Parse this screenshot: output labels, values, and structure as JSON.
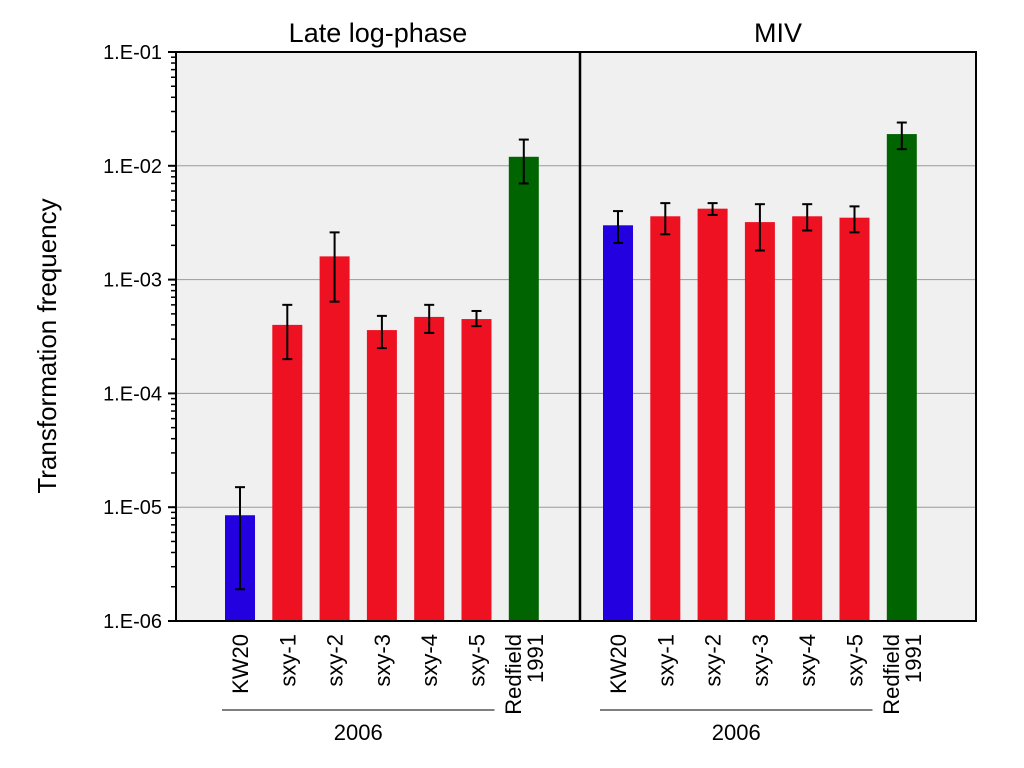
{
  "chart_data": {
    "type": "bar",
    "ylabel": "Transformation frequency",
    "yscale": "log",
    "ylim": [
      1e-06,
      0.1
    ],
    "ytick_labels": [
      "1.E-06",
      "1.E-05",
      "1.E-04",
      "1.E-03",
      "1.E-02",
      "1.E-01"
    ],
    "grid": "horizontal",
    "colors": {
      "KW20": "#2200e0",
      "sxy": "#ee1122",
      "Redfield": "#006400",
      "panel_bg": "#f0f0f0"
    },
    "panels": [
      {
        "title": "Late log-phase",
        "group_label": "2006",
        "bars": [
          {
            "label": "KW20",
            "value": 8.5e-06,
            "err_low": 1.9e-06,
            "err_high": 1.5e-05,
            "color_key": "KW20"
          },
          {
            "label": "sxy-1",
            "value": 0.0004,
            "err_low": 0.0002,
            "err_high": 0.0006,
            "color_key": "sxy"
          },
          {
            "label": "sxy-2",
            "value": 0.0016,
            "err_low": 0.00064,
            "err_high": 0.0026,
            "color_key": "sxy"
          },
          {
            "label": "sxy-3",
            "value": 0.00036,
            "err_low": 0.00025,
            "err_high": 0.00048,
            "color_key": "sxy"
          },
          {
            "label": "sxy-4",
            "value": 0.00047,
            "err_low": 0.00034,
            "err_high": 0.0006,
            "color_key": "sxy"
          },
          {
            "label": "sxy-5",
            "value": 0.00045,
            "err_low": 0.00039,
            "err_high": 0.00053,
            "color_key": "sxy"
          },
          {
            "label": "Redfield\n1991",
            "value": 0.012,
            "err_low": 0.007,
            "err_high": 0.017,
            "color_key": "Redfield"
          }
        ]
      },
      {
        "title": "MIV",
        "group_label": "2006",
        "bars": [
          {
            "label": "KW20",
            "value": 0.003,
            "err_low": 0.0021,
            "err_high": 0.004,
            "color_key": "KW20"
          },
          {
            "label": "sxy-1",
            "value": 0.0036,
            "err_low": 0.0025,
            "err_high": 0.0047,
            "color_key": "sxy"
          },
          {
            "label": "sxy-2",
            "value": 0.0042,
            "err_low": 0.0037,
            "err_high": 0.0047,
            "color_key": "sxy"
          },
          {
            "label": "sxy-3",
            "value": 0.0032,
            "err_low": 0.0018,
            "err_high": 0.0046,
            "color_key": "sxy"
          },
          {
            "label": "sxy-4",
            "value": 0.0036,
            "err_low": 0.0027,
            "err_high": 0.0046,
            "color_key": "sxy"
          },
          {
            "label": "sxy-5",
            "value": 0.0035,
            "err_low": 0.0026,
            "err_high": 0.0044,
            "color_key": "sxy"
          },
          {
            "label": "Redfield\n1991",
            "value": 0.019,
            "err_low": 0.014,
            "err_high": 0.024,
            "color_key": "Redfield"
          }
        ]
      }
    ]
  }
}
